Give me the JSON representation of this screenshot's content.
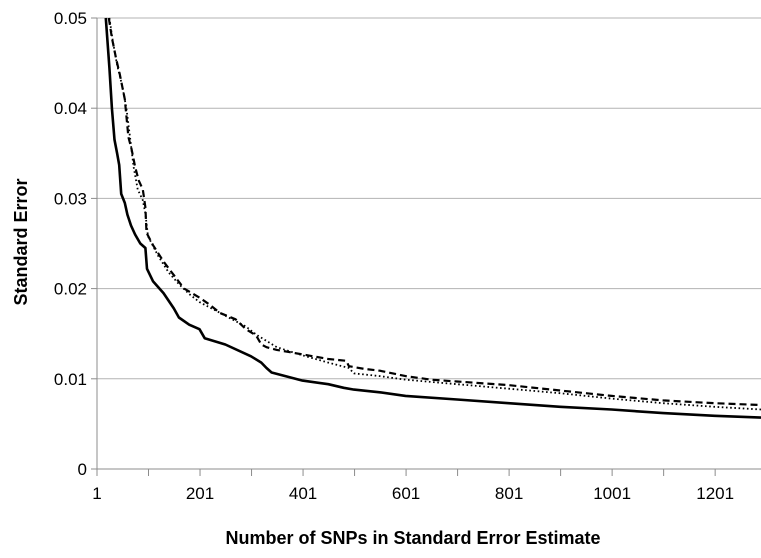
{
  "chart_data": {
    "type": "line",
    "title": "",
    "xlabel": "Number of SNPs in Standard Error Estimate",
    "ylabel": "Standard Error",
    "xlim": [
      1,
      1290
    ],
    "ylim": [
      0,
      0.05
    ],
    "x_ticks": [
      1,
      101,
      201,
      301,
      401,
      501,
      601,
      701,
      801,
      901,
      1001,
      1101,
      1201
    ],
    "x_tick_labels": [
      "1",
      "",
      "201",
      "",
      "401",
      "",
      "601",
      "",
      "801",
      "",
      "1001",
      "",
      "1201"
    ],
    "y_ticks": [
      0,
      0.01,
      0.02,
      0.03,
      0.04,
      0.05
    ],
    "y_tick_labels": [
      "0",
      "0.01",
      "0.02",
      "0.03",
      "0.04",
      "0.05"
    ],
    "grid": "horizontal",
    "legend": "none",
    "colors": {
      "line": "#000000",
      "grid": "#b3b3b3",
      "axis": "#8c8c8c"
    },
    "series": [
      {
        "style": "solid",
        "points": [
          [
            18,
            0.05
          ],
          [
            25,
            0.0445
          ],
          [
            30,
            0.04
          ],
          [
            35,
            0.0365
          ],
          [
            40,
            0.035
          ],
          [
            44,
            0.0337
          ],
          [
            48,
            0.0305
          ],
          [
            55,
            0.0295
          ],
          [
            60,
            0.0282
          ],
          [
            67,
            0.027
          ],
          [
            75,
            0.026
          ],
          [
            85,
            0.025
          ],
          [
            95,
            0.0245
          ],
          [
            98,
            0.0222
          ],
          [
            110,
            0.0208
          ],
          [
            130,
            0.0195
          ],
          [
            150,
            0.0178
          ],
          [
            160,
            0.0168
          ],
          [
            180,
            0.016
          ],
          [
            200,
            0.0155
          ],
          [
            210,
            0.0145
          ],
          [
            250,
            0.0138
          ],
          [
            300,
            0.0125
          ],
          [
            320,
            0.0118
          ],
          [
            330,
            0.0112
          ],
          [
            340,
            0.0107
          ],
          [
            400,
            0.0098
          ],
          [
            450,
            0.0094
          ],
          [
            480,
            0.009
          ],
          [
            500,
            0.0088
          ],
          [
            550,
            0.0085
          ],
          [
            600,
            0.0081
          ],
          [
            700,
            0.0077
          ],
          [
            800,
            0.0073
          ],
          [
            900,
            0.0069
          ],
          [
            1000,
            0.0066
          ],
          [
            1100,
            0.0062
          ],
          [
            1200,
            0.0059
          ],
          [
            1290,
            0.0057
          ]
        ]
      },
      {
        "style": "dashed",
        "points": [
          [
            24,
            0.05
          ],
          [
            30,
            0.0478
          ],
          [
            38,
            0.0455
          ],
          [
            45,
            0.0438
          ],
          [
            55,
            0.041
          ],
          [
            62,
            0.0368
          ],
          [
            68,
            0.0355
          ],
          [
            75,
            0.0335
          ],
          [
            82,
            0.032
          ],
          [
            90,
            0.031
          ],
          [
            95,
            0.029
          ],
          [
            97,
            0.0262
          ],
          [
            110,
            0.0248
          ],
          [
            130,
            0.023
          ],
          [
            150,
            0.0215
          ],
          [
            170,
            0.02
          ],
          [
            200,
            0.019
          ],
          [
            220,
            0.0182
          ],
          [
            240,
            0.0173
          ],
          [
            270,
            0.0166
          ],
          [
            290,
            0.0155
          ],
          [
            310,
            0.0148
          ],
          [
            320,
            0.0138
          ],
          [
            330,
            0.0135
          ],
          [
            350,
            0.0132
          ],
          [
            400,
            0.0127
          ],
          [
            450,
            0.0122
          ],
          [
            485,
            0.012
          ],
          [
            490,
            0.0114
          ],
          [
            520,
            0.0111
          ],
          [
            550,
            0.0109
          ],
          [
            600,
            0.0103
          ],
          [
            650,
            0.0099
          ],
          [
            700,
            0.0097
          ],
          [
            800,
            0.0093
          ],
          [
            900,
            0.0087
          ],
          [
            1000,
            0.0081
          ],
          [
            1100,
            0.0076
          ],
          [
            1200,
            0.0073
          ],
          [
            1290,
            0.0071
          ]
        ]
      },
      {
        "style": "dotted",
        "points": [
          [
            25,
            0.05
          ],
          [
            32,
            0.0473
          ],
          [
            40,
            0.0448
          ],
          [
            50,
            0.0425
          ],
          [
            58,
            0.04
          ],
          [
            65,
            0.0368
          ],
          [
            72,
            0.0335
          ],
          [
            80,
            0.031
          ],
          [
            90,
            0.0298
          ],
          [
            95,
            0.0283
          ],
          [
            100,
            0.0258
          ],
          [
            120,
            0.0236
          ],
          [
            140,
            0.0218
          ],
          [
            160,
            0.0205
          ],
          [
            180,
            0.0194
          ],
          [
            200,
            0.0185
          ],
          [
            230,
            0.0176
          ],
          [
            260,
            0.0167
          ],
          [
            290,
            0.0158
          ],
          [
            310,
            0.0149
          ],
          [
            330,
            0.0142
          ],
          [
            350,
            0.0135
          ],
          [
            400,
            0.0126
          ],
          [
            450,
            0.0118
          ],
          [
            490,
            0.0112
          ],
          [
            500,
            0.0106
          ],
          [
            550,
            0.0103
          ],
          [
            600,
            0.0099
          ],
          [
            700,
            0.0094
          ],
          [
            800,
            0.0089
          ],
          [
            900,
            0.0084
          ],
          [
            1000,
            0.0078
          ],
          [
            1100,
            0.0073
          ],
          [
            1200,
            0.0069
          ],
          [
            1290,
            0.0066
          ]
        ]
      }
    ]
  }
}
